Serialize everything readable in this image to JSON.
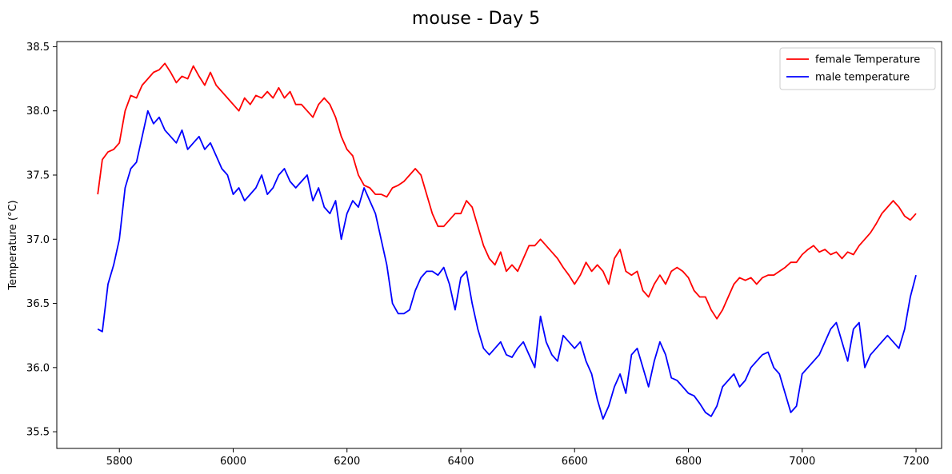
{
  "chart_data": {
    "type": "line",
    "title": "mouse - Day 5",
    "xlabel": "",
    "ylabel": "Temperature (°C)",
    "xlim": [
      5690,
      7245
    ],
    "ylim": [
      35.37,
      38.54
    ],
    "xticks": [
      5800,
      6000,
      6200,
      6400,
      6600,
      6800,
      7000,
      7200
    ],
    "yticks": [
      35.5,
      36.0,
      36.5,
      37.0,
      37.5,
      38.0,
      38.5
    ],
    "ytick_labels": [
      "35.5",
      "36.0",
      "36.5",
      "37.0",
      "37.5",
      "38.0",
      "38.5"
    ],
    "grid": false,
    "legend_position": "top-right",
    "series": [
      {
        "name": "female Temperature",
        "color": "#ff0000",
        "x": [
          5762,
          5770,
          5780,
          5790,
          5800,
          5810,
          5820,
          5830,
          5840,
          5850,
          5860,
          5870,
          5880,
          5890,
          5900,
          5910,
          5920,
          5930,
          5940,
          5950,
          5960,
          5970,
          5980,
          5990,
          6000,
          6010,
          6020,
          6030,
          6040,
          6050,
          6060,
          6070,
          6080,
          6090,
          6100,
          6110,
          6120,
          6130,
          6140,
          6150,
          6160,
          6170,
          6180,
          6190,
          6200,
          6210,
          6220,
          6230,
          6240,
          6250,
          6260,
          6270,
          6280,
          6290,
          6300,
          6310,
          6320,
          6330,
          6340,
          6350,
          6360,
          6370,
          6380,
          6390,
          6400,
          6410,
          6420,
          6430,
          6440,
          6450,
          6460,
          6470,
          6480,
          6490,
          6500,
          6510,
          6520,
          6530,
          6540,
          6550,
          6560,
          6570,
          6580,
          6590,
          6600,
          6610,
          6620,
          6630,
          6640,
          6650,
          6660,
          6670,
          6680,
          6690,
          6700,
          6710,
          6720,
          6730,
          6740,
          6750,
          6760,
          6770,
          6780,
          6790,
          6800,
          6810,
          6820,
          6830,
          6840,
          6850,
          6860,
          6870,
          6880,
          6890,
          6900,
          6910,
          6920,
          6930,
          6940,
          6950,
          6960,
          6970,
          6980,
          6990,
          7000,
          7010,
          7020,
          7030,
          7040,
          7050,
          7060,
          7070,
          7080,
          7090,
          7100,
          7110,
          7120,
          7130,
          7140,
          7150,
          7160,
          7170,
          7180,
          7190,
          7200
        ],
        "y": [
          37.35,
          37.62,
          37.68,
          37.7,
          37.75,
          38.0,
          38.12,
          38.1,
          38.2,
          38.25,
          38.3,
          38.32,
          38.37,
          38.3,
          38.22,
          38.27,
          38.25,
          38.35,
          38.27,
          38.2,
          38.3,
          38.2,
          38.15,
          38.1,
          38.05,
          38.0,
          38.1,
          38.05,
          38.12,
          38.1,
          38.15,
          38.1,
          38.18,
          38.1,
          38.15,
          38.05,
          38.05,
          38.0,
          37.95,
          38.05,
          38.1,
          38.05,
          37.95,
          37.8,
          37.7,
          37.65,
          37.5,
          37.42,
          37.4,
          37.35,
          37.35,
          37.33,
          37.4,
          37.42,
          37.45,
          37.5,
          37.55,
          37.5,
          37.35,
          37.2,
          37.1,
          37.1,
          37.15,
          37.2,
          37.2,
          37.3,
          37.25,
          37.1,
          36.95,
          36.85,
          36.8,
          36.9,
          36.75,
          36.8,
          36.75,
          36.85,
          36.95,
          36.95,
          37.0,
          36.95,
          36.9,
          36.85,
          36.78,
          36.72,
          36.65,
          36.72,
          36.82,
          36.75,
          36.8,
          36.75,
          36.65,
          36.85,
          36.92,
          36.75,
          36.72,
          36.75,
          36.6,
          36.55,
          36.65,
          36.72,
          36.65,
          36.75,
          36.78,
          36.75,
          36.7,
          36.6,
          36.55,
          36.55,
          36.45,
          36.38,
          36.45,
          36.55,
          36.65,
          36.7,
          36.68,
          36.7,
          36.65,
          36.7,
          36.72,
          36.72,
          36.75,
          36.78,
          36.82,
          36.82,
          36.88,
          36.92,
          36.95,
          36.9,
          36.92,
          36.88,
          36.9,
          36.85,
          36.9,
          36.88,
          36.95,
          37.0,
          37.05,
          37.12,
          37.2,
          37.25,
          37.3,
          37.25,
          37.18,
          37.15,
          37.2
        ]
      },
      {
        "name": "male temperature",
        "color": "#0000ff",
        "x": [
          5762,
          5770,
          5780,
          5790,
          5800,
          5810,
          5820,
          5830,
          5840,
          5850,
          5860,
          5870,
          5880,
          5890,
          5900,
          5910,
          5920,
          5930,
          5940,
          5950,
          5960,
          5970,
          5980,
          5990,
          6000,
          6010,
          6020,
          6030,
          6040,
          6050,
          6060,
          6070,
          6080,
          6090,
          6100,
          6110,
          6120,
          6130,
          6140,
          6150,
          6160,
          6170,
          6180,
          6190,
          6200,
          6210,
          6220,
          6230,
          6240,
          6250,
          6260,
          6270,
          6280,
          6290,
          6300,
          6310,
          6320,
          6330,
          6340,
          6350,
          6360,
          6370,
          6380,
          6390,
          6400,
          6410,
          6420,
          6430,
          6440,
          6450,
          6460,
          6470,
          6480,
          6490,
          6500,
          6510,
          6520,
          6530,
          6540,
          6550,
          6560,
          6570,
          6580,
          6590,
          6600,
          6610,
          6620,
          6630,
          6640,
          6650,
          6660,
          6670,
          6680,
          6690,
          6700,
          6710,
          6720,
          6730,
          6740,
          6750,
          6760,
          6770,
          6780,
          6790,
          6800,
          6810,
          6820,
          6830,
          6840,
          6850,
          6860,
          6870,
          6880,
          6890,
          6900,
          6910,
          6920,
          6930,
          6940,
          6950,
          6960,
          6970,
          6980,
          6990,
          7000,
          7010,
          7020,
          7030,
          7040,
          7050,
          7060,
          7070,
          7080,
          7090,
          7100,
          7110,
          7120,
          7130,
          7140,
          7150,
          7160,
          7170,
          7180,
          7190,
          7200
        ],
        "y": [
          36.3,
          36.28,
          36.65,
          36.8,
          37.0,
          37.4,
          37.55,
          37.6,
          37.8,
          38.0,
          37.9,
          37.95,
          37.85,
          37.8,
          37.75,
          37.85,
          37.7,
          37.75,
          37.8,
          37.7,
          37.75,
          37.65,
          37.55,
          37.5,
          37.35,
          37.4,
          37.3,
          37.35,
          37.4,
          37.5,
          37.35,
          37.4,
          37.5,
          37.55,
          37.45,
          37.4,
          37.45,
          37.5,
          37.3,
          37.4,
          37.25,
          37.2,
          37.3,
          37.0,
          37.2,
          37.3,
          37.25,
          37.4,
          37.3,
          37.2,
          37.0,
          36.8,
          36.5,
          36.42,
          36.42,
          36.45,
          36.6,
          36.7,
          36.75,
          36.75,
          36.72,
          36.78,
          36.65,
          36.45,
          36.7,
          36.75,
          36.5,
          36.3,
          36.15,
          36.1,
          36.15,
          36.2,
          36.1,
          36.08,
          36.15,
          36.2,
          36.1,
          36.0,
          36.4,
          36.2,
          36.1,
          36.05,
          36.25,
          36.2,
          36.15,
          36.2,
          36.05,
          35.95,
          35.75,
          35.6,
          35.7,
          35.85,
          35.95,
          35.8,
          36.1,
          36.15,
          36.0,
          35.85,
          36.05,
          36.2,
          36.1,
          35.92,
          35.9,
          35.85,
          35.8,
          35.78,
          35.72,
          35.65,
          35.62,
          35.7,
          35.85,
          35.9,
          35.95,
          35.85,
          35.9,
          36.0,
          36.05,
          36.1,
          36.12,
          36.0,
          35.95,
          35.8,
          35.65,
          35.7,
          35.95,
          36.0,
          36.05,
          36.1,
          36.2,
          36.3,
          36.35,
          36.2,
          36.05,
          36.3,
          36.35,
          36.0,
          36.1,
          36.15,
          36.2,
          36.25,
          36.2,
          36.15,
          36.3,
          36.55,
          36.72
        ]
      }
    ]
  }
}
